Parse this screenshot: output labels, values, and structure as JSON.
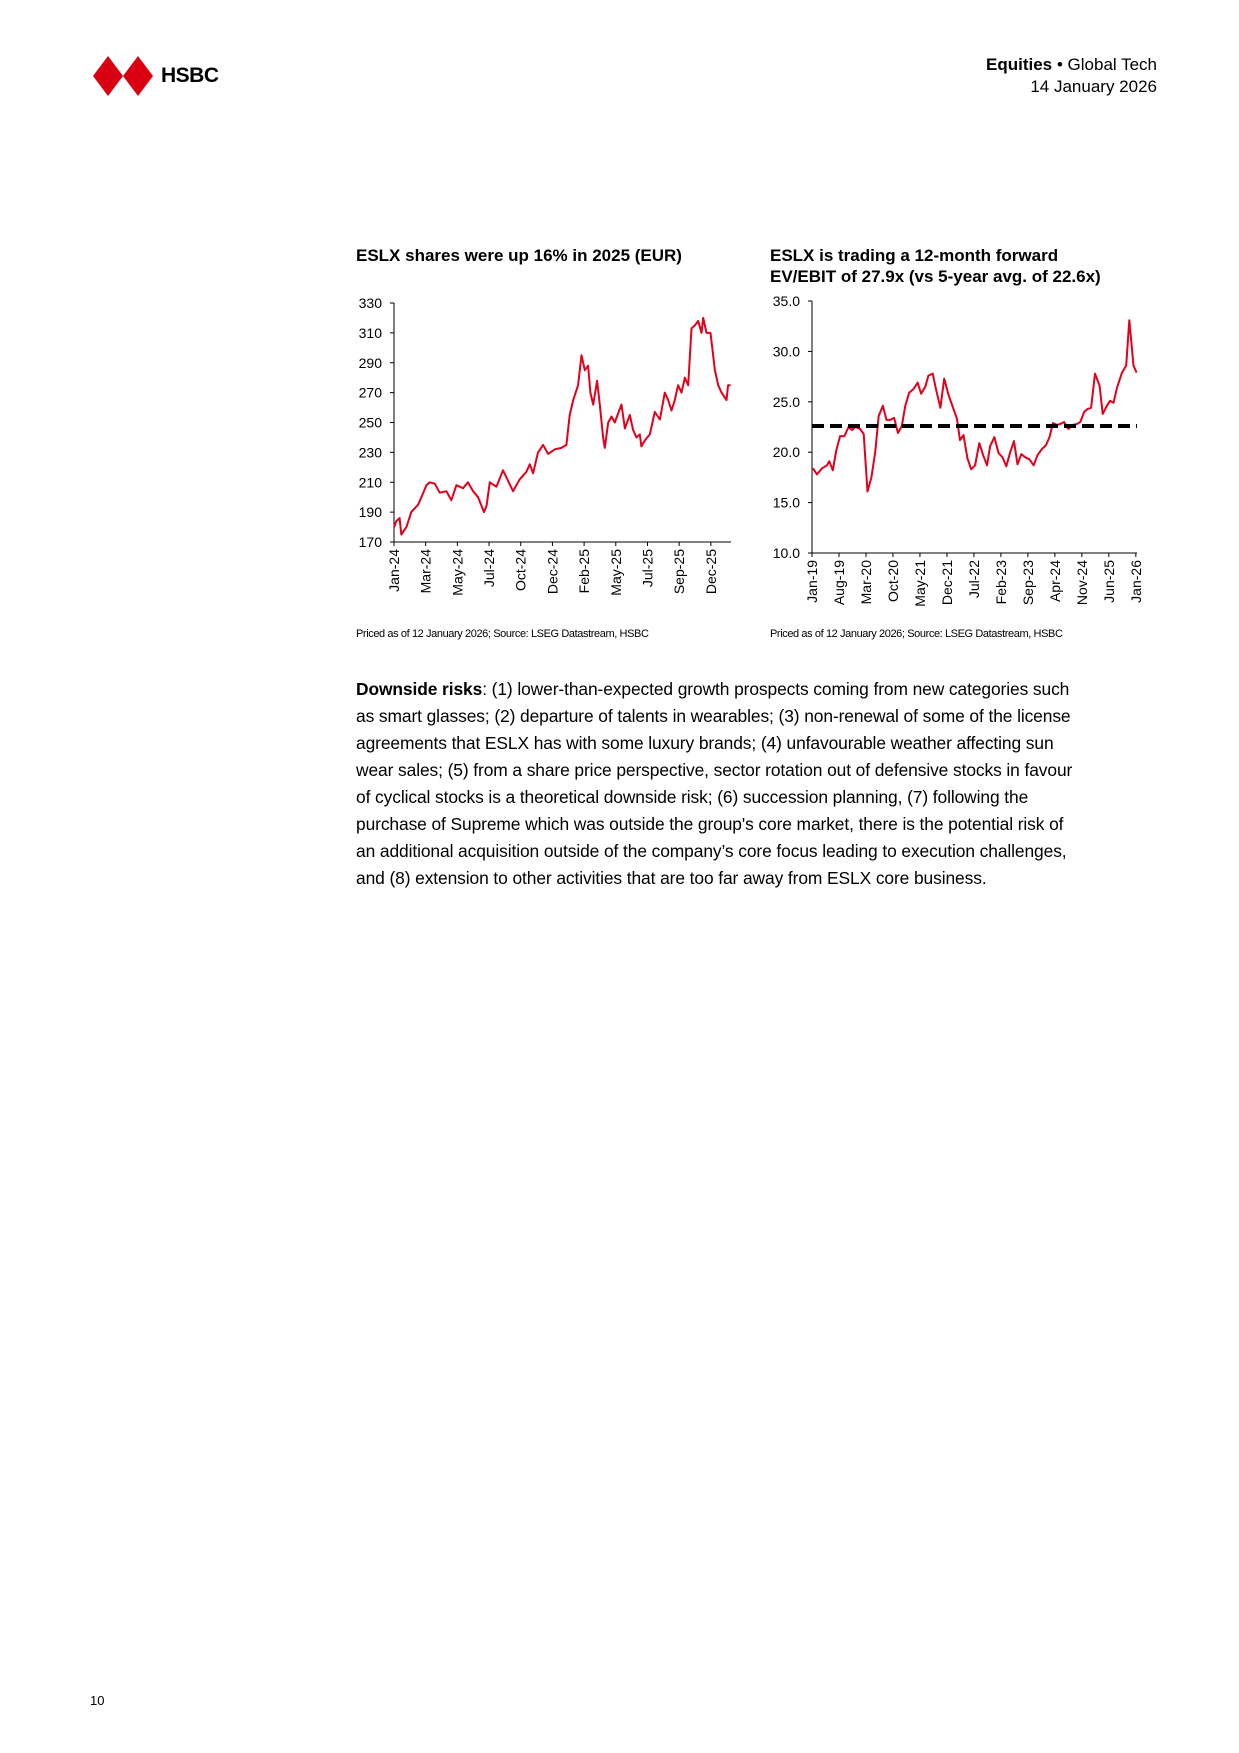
{
  "header": {
    "brand": "HSBC",
    "section_bold": "Equities",
    "bullet": "•",
    "section": "Global Tech",
    "date": "14 January 2026"
  },
  "colors": {
    "brand_red": "#db0011",
    "line_red": "#e2001a",
    "avg_line": "#000000"
  },
  "chart_titles": {
    "left": "ESLX shares were up 16% in 2025 (EUR)",
    "right_line1": "ESLX is trading a 12-month forward",
    "right_line2": "EV/EBIT of 27.9x (vs 5-year avg. of 22.6x)"
  },
  "sources": {
    "left": "Priced as of 12 January 2026; Source: LSEG Datastream, HSBC",
    "right": "Priced as of 12 January 2026; Source: LSEG Datastream, HSBC"
  },
  "chart_data": [
    {
      "type": "line",
      "title": "ESLX shares were up 16% in 2025 (EUR)",
      "xlabel": "",
      "ylabel": "",
      "x_unit": "months since Jan-24",
      "xlim": [
        0,
        23.4
      ],
      "ylim": [
        170,
        330
      ],
      "yticks": [
        170,
        190,
        210,
        230,
        250,
        270,
        290,
        310,
        330
      ],
      "ytick_labels": [
        "170",
        "190",
        "210",
        "230",
        "250",
        "270",
        "290",
        "310",
        "330"
      ],
      "xticks": [
        0,
        2.2,
        4.4,
        6.6,
        8.8,
        11,
        13.2,
        15.4,
        17.6,
        19.8,
        22
      ],
      "xtick_labels": [
        "Jan-24",
        "Mar-24",
        "May-24",
        "Jul-24",
        "Oct-24",
        "Dec-24",
        "Feb-25",
        "May-25",
        "Jul-25",
        "Sep-25",
        "Dec-25"
      ],
      "grid": false,
      "series": [
        {
          "name": "ESLX share price (EUR)",
          "x": [
            0,
            0.16,
            0.39,
            0.51,
            0.86,
            1.2,
            1.67,
            1.9,
            2.25,
            2.48,
            2.83,
            3.17,
            3.64,
            3.98,
            4.33,
            4.79,
            5.14,
            5.49,
            5.84,
            6.25,
            6.42,
            6.65,
            7.11,
            7.57,
            8.27,
            8.73,
            9.19,
            9.43,
            9.66,
            10.0,
            10.35,
            10.7,
            11.16,
            11.63,
            11.97,
            12.2,
            12.44,
            12.78,
            13.02,
            13.25,
            13.48,
            13.64,
            13.83,
            14.1,
            14.29,
            14.52,
            14.64,
            14.87,
            15.1,
            15.33,
            15.56,
            15.8,
            16.03,
            16.37,
            16.6,
            16.84,
            17.07,
            17.18,
            17.42,
            17.76,
            18.11,
            18.46,
            18.8,
            19.04,
            19.27,
            19.5,
            19.73,
            19.96,
            20.2,
            20.43,
            20.66,
            20.89,
            21.12,
            21.35,
            21.47,
            21.7,
            21.98,
            22.28,
            22.51,
            22.74,
            23.09,
            23.2,
            23.37
          ],
          "y": [
            180,
            184,
            186,
            175,
            180,
            190,
            195,
            200,
            208,
            210,
            209,
            203,
            204,
            198,
            208,
            206,
            210,
            204,
            200,
            190,
            194,
            210,
            207,
            218,
            204,
            212,
            217,
            222,
            216,
            230,
            235,
            229,
            232,
            233,
            235,
            255,
            265,
            275,
            295,
            285,
            288,
            270,
            262,
            278,
            262,
            240,
            233,
            250,
            254,
            250,
            256,
            262,
            246,
            255,
            245,
            240,
            242,
            234,
            238,
            242,
            257,
            252,
            270,
            265,
            258,
            265,
            275,
            270,
            280,
            275,
            313,
            315,
            318,
            310,
            320,
            310,
            310,
            285,
            275,
            270,
            265,
            275,
            275
          ]
        }
      ]
    },
    {
      "type": "line",
      "title": "ESLX is trading a 12-month forward EV/EBIT of 27.9x (vs 5-year avg. of 22.6x)",
      "xlabel": "",
      "ylabel": "",
      "x_unit": "months since Jan-19",
      "xlim": [
        0,
        84.3
      ],
      "ylim": [
        10,
        35
      ],
      "yticks": [
        10,
        15,
        20,
        25,
        30,
        35
      ],
      "ytick_labels": [
        "10.0",
        "15.0",
        "20.0",
        "25.0",
        "30.0",
        "35.0"
      ],
      "xticks": [
        0,
        7,
        14,
        21,
        28,
        35,
        42,
        49,
        56,
        63,
        70,
        77,
        84
      ],
      "xtick_labels": [
        "Jan-19",
        "Aug-19",
        "Mar-20",
        "Oct-20",
        "May-21",
        "Dec-21",
        "Jul-22",
        "Feb-23",
        "Sep-23",
        "Apr-24",
        "Nov-24",
        "Jun-25",
        "Jan-26"
      ],
      "grid": false,
      "series": [
        {
          "name": "12-month forward EV/EBIT",
          "style": "solid",
          "x": [
            0.26,
            1.3,
            2.6,
            3.9,
            4.5,
            5.4,
            6.3,
            7.3,
            8.4,
            9.5,
            10.4,
            11.2,
            12.5,
            13.4,
            14.4,
            15.4,
            16.4,
            17.3,
            18.4,
            19.3,
            20.3,
            21.3,
            22.3,
            23.3,
            24.2,
            25.2,
            26.4,
            27.4,
            28.3,
            29.4,
            30.2,
            31.3,
            32.2,
            33.3,
            34.3,
            35.4,
            36.5,
            37.6,
            38.4,
            39.3,
            40.3,
            41.3,
            42.3,
            43.4,
            44.3,
            45.4,
            46.2,
            47.3,
            48.4,
            49.4,
            50.4,
            51.4,
            52.4,
            53.3,
            54.3,
            55.3,
            56.4,
            57.5,
            58.5,
            59.6,
            60.7,
            61.6,
            62.5,
            63.5,
            64.4,
            65.4,
            66.5,
            67.6,
            68.7,
            69.6,
            70.6,
            71.5,
            72.4,
            73.4,
            74.6,
            75.4,
            76.5,
            77.3,
            78.2,
            79.1,
            80.4,
            81.5,
            82.3,
            83.4,
            84.2
          ],
          "y": [
            18.4,
            17.8,
            18.4,
            18.7,
            19.1,
            18.2,
            20.2,
            21.6,
            21.6,
            22.5,
            22.2,
            22.5,
            22.3,
            21.8,
            16.1,
            17.5,
            20.0,
            23.6,
            24.6,
            23.2,
            23.2,
            23.4,
            21.9,
            22.6,
            24.6,
            25.9,
            26.3,
            26.9,
            25.8,
            26.5,
            27.6,
            27.8,
            26.2,
            24.4,
            27.3,
            25.7,
            24.5,
            23.3,
            21.2,
            21.7,
            19.4,
            18.3,
            18.7,
            20.9,
            19.8,
            18.7,
            20.6,
            21.5,
            19.9,
            19.5,
            18.6,
            20.0,
            21.1,
            18.8,
            19.8,
            19.5,
            19.3,
            18.7,
            19.7,
            20.3,
            20.7,
            21.5,
            22.9,
            22.7,
            22.8,
            23.0,
            22.3,
            22.7,
            22.8,
            23.0,
            24.0,
            24.3,
            24.4,
            27.8,
            26.6,
            23.8,
            24.6,
            25.1,
            24.9,
            26.4,
            27.9,
            28.6,
            33.1,
            28.6,
            27.9
          ]
        },
        {
          "name": "5-year average",
          "style": "dashed",
          "x": [
            0,
            84.3
          ],
          "y": [
            22.6,
            22.6
          ]
        }
      ]
    }
  ],
  "body": {
    "bold_lead": "Downside risks",
    "lines": [
      ": (1) lower-than-expected growth prospects coming from new categories such",
      "as smart glasses; (2) departure of talents in wearables; (3) non-renewal of some of the license",
      "agreements that ESLX has with some luxury brands; (4) unfavourable weather affecting sun",
      "wear sales; (5) from a share price perspective, sector rotation out of defensive stocks in favour",
      "of cyclical stocks is a theoretical downside risk; (6) succession planning, (7) following the",
      "purchase of Supreme which was outside the group's core market, there is the potential risk of",
      "an additional acquisition outside of the company’s core focus leading to execution challenges,",
      "and (8) extension to other activities that are too far away from ESLX core business."
    ]
  },
  "footer": {
    "page_number": "10"
  }
}
